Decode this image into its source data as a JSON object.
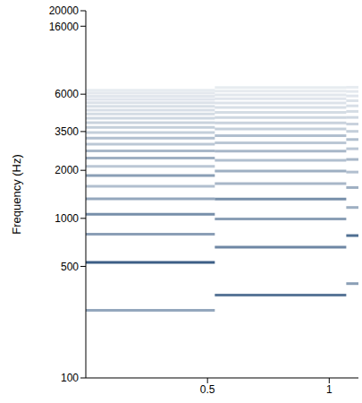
{
  "chart_data": {
    "type": "spectrogram",
    "y_label": "Frequency (Hz)",
    "xlim": [
      0,
      1.12
    ],
    "xticks": [
      0.5,
      1
    ],
    "ylim": [
      100,
      20000
    ],
    "yticks": [
      100,
      500,
      1000,
      2000,
      3500,
      6000,
      16000,
      20000
    ],
    "log": "y",
    "color": "#3d5f86",
    "segments": [
      {
        "x": [
          0,
          0.53
        ],
        "frequencies": [
          265,
          530,
          795,
          1060,
          1325,
          1590,
          1855,
          2120,
          2385,
          2650,
          2915,
          3180,
          3445,
          3710,
          3975,
          4240,
          4505,
          4770,
          5035,
          5300,
          5565,
          5830,
          6095,
          6360
        ],
        "intensity": [
          0.55,
          1,
          0.6,
          0.7,
          0.55,
          0.4,
          0.6,
          0.35,
          0.5,
          0.45,
          0.35,
          0.4,
          0.3,
          0.3,
          0.28,
          0.25,
          0.22,
          0.2,
          0.2,
          0.18,
          0.16,
          0.15,
          0.14,
          0.12
        ]
      },
      {
        "x": [
          0.53,
          1.07
        ],
        "frequencies": [
          330,
          660,
          990,
          1320,
          1650,
          1980,
          2310,
          2640,
          2970,
          3300,
          3630,
          3960,
          4290,
          4620,
          4950,
          5280,
          5610,
          5940,
          6270,
          6600
        ],
        "intensity": [
          0.85,
          0.75,
          0.6,
          0.7,
          0.45,
          0.5,
          0.4,
          0.45,
          0.35,
          0.4,
          0.3,
          0.28,
          0.25,
          0.22,
          0.2,
          0.18,
          0.16,
          0.15,
          0.13,
          0.12
        ]
      },
      {
        "x": [
          1.07,
          1.12
        ],
        "frequencies": [
          390,
          780,
          1170,
          1560,
          1950,
          2340,
          2730,
          3120,
          3510,
          3900,
          4290,
          4680,
          5070,
          5460,
          5850,
          6240,
          6630
        ],
        "intensity": [
          0.6,
          0.9,
          0.5,
          0.5,
          0.4,
          0.45,
          0.35,
          0.4,
          0.3,
          0.28,
          0.25,
          0.22,
          0.2,
          0.18,
          0.16,
          0.14,
          0.12
        ]
      }
    ]
  }
}
